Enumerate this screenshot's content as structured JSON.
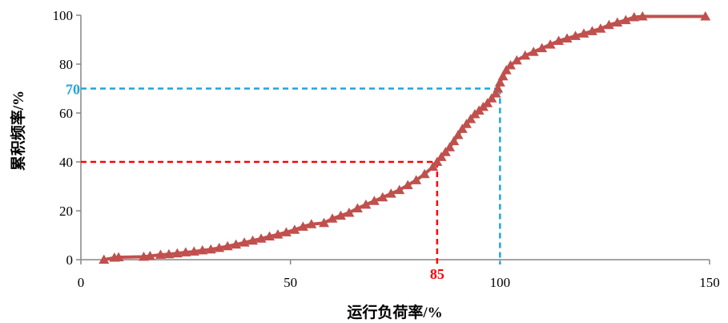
{
  "chart_data": {
    "type": "line",
    "xlabel": "运行负荷率/%",
    "ylabel": "累积频率/%",
    "xlim": [
      0,
      150
    ],
    "ylim": [
      0,
      100
    ],
    "xticks": [
      0,
      50,
      100,
      150
    ],
    "yticks": [
      0,
      20,
      40,
      60,
      80,
      100
    ],
    "grid": false,
    "axis_color": "#868686",
    "series": [
      {
        "color": "#c0504d",
        "marker": "triangle",
        "x": [
          5.5,
          8,
          9,
          15,
          16.5,
          19,
          21,
          23,
          25,
          27,
          29,
          31,
          33,
          35,
          37,
          39,
          41,
          43,
          45,
          47,
          49,
          51,
          53,
          55,
          58,
          60,
          62,
          64,
          66,
          68,
          70,
          72,
          74,
          76,
          78,
          80,
          82,
          84,
          85,
          86,
          87,
          88,
          89,
          90,
          91,
          92,
          93,
          94,
          95,
          96,
          97,
          98,
          99,
          99.5,
          100,
          100.7,
          101.5,
          102.5,
          104,
          106,
          108,
          110,
          112,
          114,
          116,
          118,
          120,
          122,
          124,
          126,
          128,
          130,
          132,
          134,
          149
        ],
        "y": [
          0,
          0.8,
          1,
          1.2,
          1.5,
          2,
          2.2,
          2.6,
          3,
          3.3,
          3.8,
          4.2,
          4.8,
          5.5,
          6.2,
          7,
          7.8,
          8.6,
          9.5,
          10.3,
          11.2,
          12.2,
          13.5,
          14.5,
          15,
          16.8,
          18,
          19.2,
          21,
          22.5,
          24,
          25.5,
          27,
          28.5,
          30.5,
          32.5,
          35,
          38,
          40,
          42,
          44,
          46,
          48.5,
          51,
          53.5,
          55.5,
          57.5,
          59.5,
          61,
          62.5,
          64,
          66,
          68,
          70,
          72.5,
          75,
          77.5,
          79.5,
          81.5,
          83.5,
          85,
          86.5,
          88,
          89.5,
          90.5,
          91.5,
          92.5,
          93.5,
          94.5,
          96,
          97,
          98,
          99.2,
          99.5,
          99.5
        ]
      }
    ],
    "reference_lines": [
      {
        "x": 85,
        "y": 40,
        "label": "85",
        "color": "#ff0000"
      },
      {
        "x": 100,
        "y": 70,
        "label": "70",
        "color": "#1ea6df"
      }
    ]
  }
}
